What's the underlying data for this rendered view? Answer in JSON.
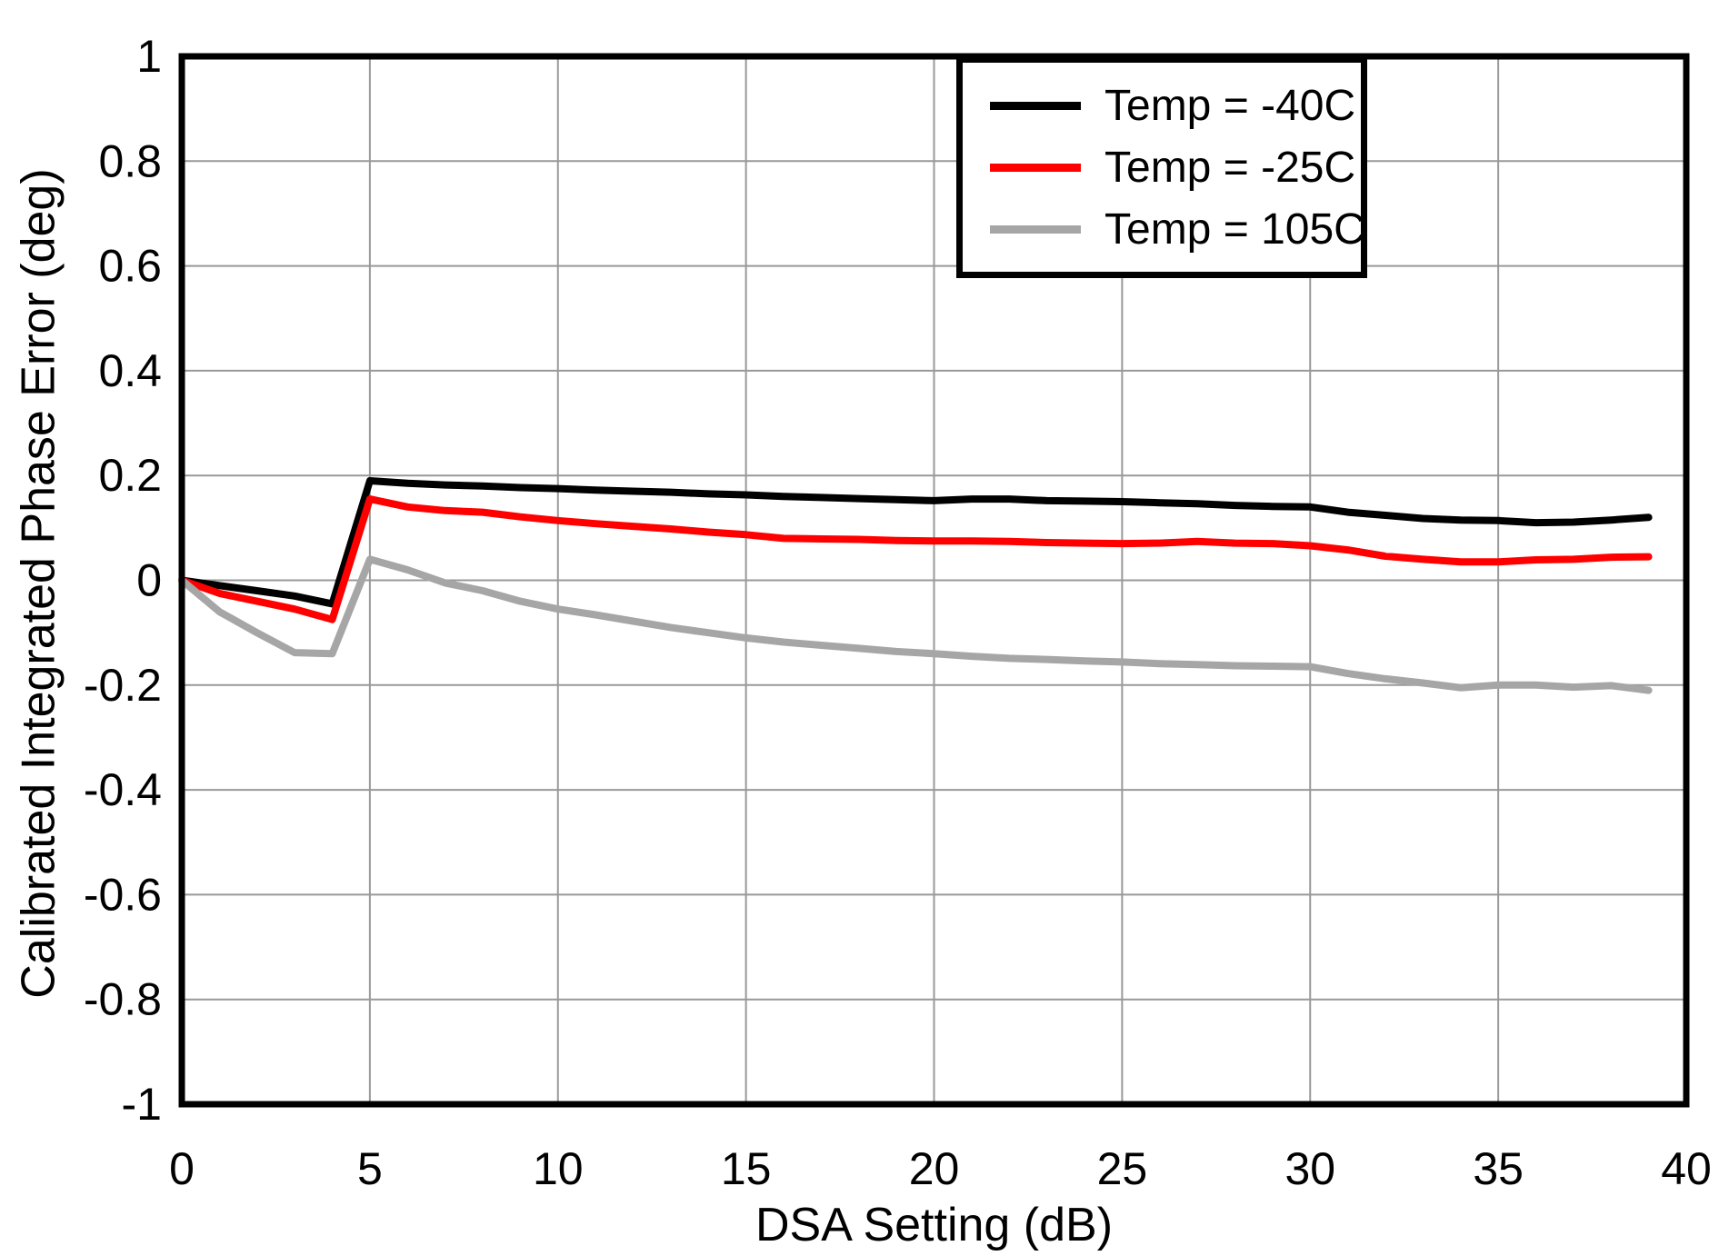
{
  "chart_data": {
    "type": "line",
    "title": "",
    "xlabel": "DSA Setting (dB)",
    "ylabel": "Calibrated Integrated Phase Error (deg)",
    "xlim": [
      0,
      40
    ],
    "ylim": [
      -1,
      1
    ],
    "xticks": [
      0,
      5,
      10,
      15,
      20,
      25,
      30,
      35,
      40
    ],
    "yticks": [
      -1,
      -0.8,
      -0.6,
      -0.4,
      -0.2,
      0,
      0.2,
      0.4,
      0.6,
      0.8,
      1
    ],
    "grid": true,
    "legend_position": "top-right",
    "frame_color": "#000000",
    "grid_color": "#999999",
    "x": [
      0,
      1,
      2,
      3,
      4,
      5,
      6,
      7,
      8,
      9,
      10,
      11,
      12,
      13,
      14,
      15,
      16,
      17,
      18,
      19,
      20,
      21,
      22,
      23,
      24,
      25,
      26,
      27,
      28,
      29,
      30,
      31,
      32,
      33,
      34,
      35,
      36,
      37,
      38,
      39
    ],
    "series": [
      {
        "name": "Temp = -40C",
        "color": "#000000",
        "values": [
          0,
          -0.01,
          -0.02,
          -0.03,
          -0.045,
          0.19,
          0.185,
          0.182,
          0.18,
          0.177,
          0.175,
          0.172,
          0.17,
          0.168,
          0.165,
          0.163,
          0.16,
          0.158,
          0.156,
          0.154,
          0.152,
          0.155,
          0.155,
          0.152,
          0.151,
          0.15,
          0.148,
          0.146,
          0.143,
          0.141,
          0.14,
          0.13,
          0.124,
          0.118,
          0.115,
          0.114,
          0.11,
          0.111,
          0.115,
          0.12
        ]
      },
      {
        "name": "Temp = -25C",
        "color": "#ff0000",
        "values": [
          0,
          -0.025,
          -0.04,
          -0.055,
          -0.075,
          0.155,
          0.14,
          0.133,
          0.13,
          0.121,
          0.114,
          0.108,
          0.103,
          0.098,
          0.092,
          0.087,
          0.08,
          0.079,
          0.078,
          0.076,
          0.075,
          0.075,
          0.074,
          0.072,
          0.071,
          0.07,
          0.071,
          0.074,
          0.071,
          0.07,
          0.066,
          0.058,
          0.046,
          0.04,
          0.035,
          0.035,
          0.039,
          0.04,
          0.044,
          0.045
        ]
      },
      {
        "name": "Temp = 105C",
        "color": "#a6a6a6",
        "values": [
          0,
          -0.06,
          -0.1,
          -0.138,
          -0.14,
          0.04,
          0.02,
          -0.005,
          -0.02,
          -0.04,
          -0.055,
          -0.066,
          -0.078,
          -0.09,
          -0.1,
          -0.11,
          -0.118,
          -0.124,
          -0.13,
          -0.136,
          -0.14,
          -0.145,
          -0.149,
          -0.151,
          -0.154,
          -0.156,
          -0.159,
          -0.161,
          -0.163,
          -0.164,
          -0.165,
          -0.178,
          -0.188,
          -0.196,
          -0.205,
          -0.2,
          -0.2,
          -0.204,
          -0.201,
          -0.21
        ]
      }
    ]
  }
}
